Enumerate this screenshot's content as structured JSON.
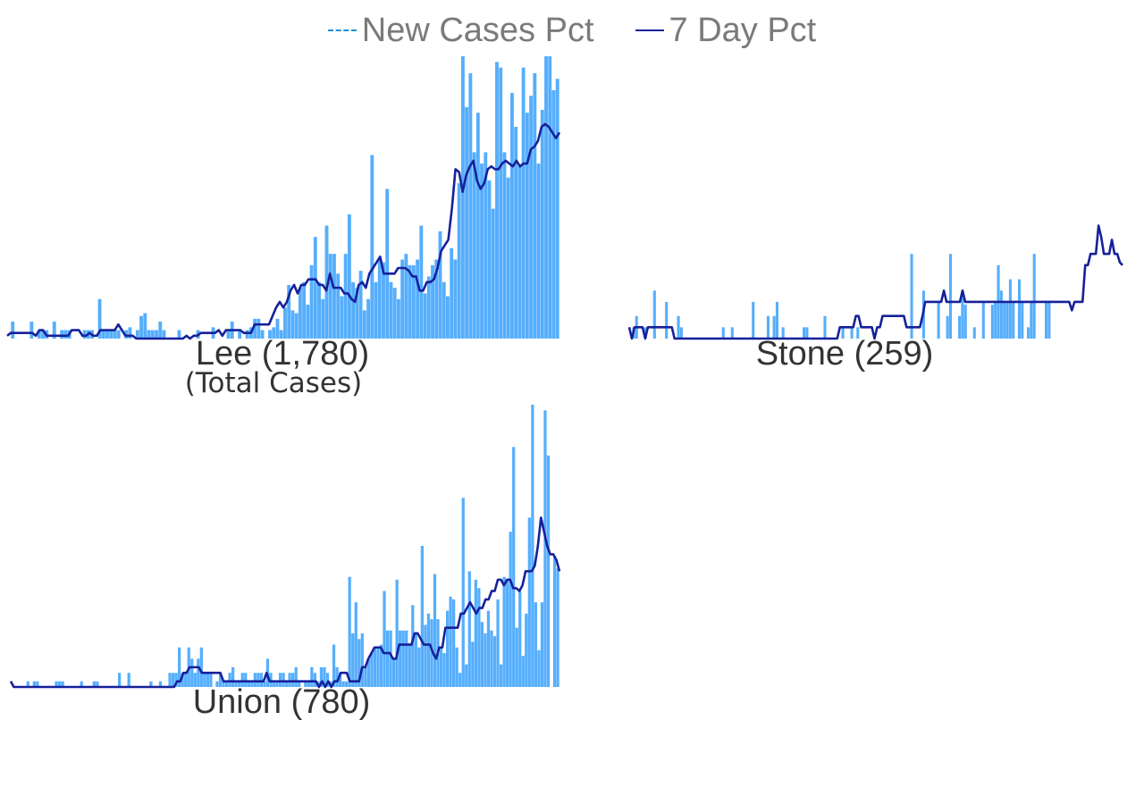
{
  "legend": {
    "new_cases_label": "New Cases Pct",
    "seven_day_label": "7 Day Pct"
  },
  "colors": {
    "bar": "#56aefc",
    "line": "#16219a",
    "legend_dashed": "#1f8fd6"
  },
  "chart_data": [
    {
      "type": "bar",
      "title": "Lee (1,780)",
      "subtitle": "(Total Cases)",
      "ylim": [
        0,
        100
      ],
      "bars": [
        0,
        6,
        0,
        0,
        0,
        0,
        6,
        0,
        3,
        3,
        3,
        0,
        6,
        0,
        3,
        3,
        3,
        0,
        0,
        0,
        3,
        3,
        3,
        0,
        14,
        3,
        3,
        3,
        3,
        3,
        0,
        3,
        4,
        0,
        3,
        8,
        9,
        3,
        3,
        3,
        6,
        3,
        0,
        0,
        0,
        3,
        0,
        0,
        0,
        0,
        3,
        0,
        0,
        0,
        4,
        0,
        0,
        0,
        3,
        6,
        0,
        3,
        0,
        3,
        4,
        7,
        7,
        3,
        0,
        3,
        4,
        7,
        3,
        11,
        19,
        10,
        9,
        18,
        20,
        12,
        26,
        36,
        20,
        14,
        40,
        30,
        30,
        23,
        15,
        30,
        44,
        20,
        18,
        24,
        10,
        14,
        65,
        20,
        28,
        27,
        53,
        20,
        18,
        14,
        28,
        30,
        26,
        26,
        28,
        40,
        16,
        22,
        26,
        28,
        38,
        20,
        15,
        32,
        28,
        55,
        100,
        82,
        94,
        66,
        80,
        62,
        66,
        56,
        46,
        98,
        96,
        66,
        57,
        87,
        75,
        61,
        96,
        80,
        86,
        94,
        62,
        81,
        100,
        100,
        88,
        92
      ],
      "line": [
        1,
        2,
        2,
        2,
        2,
        2,
        2,
        2,
        1,
        3,
        3,
        1,
        1,
        1,
        1,
        1,
        1,
        1,
        3,
        3,
        3,
        1,
        1,
        2,
        1,
        1,
        3,
        3,
        3,
        3,
        3,
        5,
        3,
        1,
        1,
        1,
        0,
        0,
        0,
        0,
        0,
        0,
        0,
        0,
        0,
        0,
        0,
        0,
        0,
        0,
        1,
        0,
        1,
        1,
        2,
        2,
        2,
        2,
        2,
        3,
        1,
        3,
        3,
        3,
        3,
        3,
        2,
        2,
        2,
        5,
        5,
        5,
        5,
        5,
        8,
        11,
        13,
        11,
        13,
        17,
        19,
        16,
        19,
        19,
        21,
        21,
        21,
        19,
        19,
        17,
        23,
        18,
        18,
        18,
        16,
        16,
        14,
        13,
        19,
        20,
        18,
        23,
        25,
        27,
        29,
        23,
        23,
        23,
        23,
        25,
        25,
        25,
        24,
        22,
        22,
        17,
        17,
        20,
        20,
        21,
        25,
        31,
        33,
        35,
        46,
        60,
        59,
        52,
        58,
        61,
        63,
        56,
        53,
        55,
        60,
        61,
        60,
        60,
        62,
        63,
        62,
        61,
        63,
        61,
        62,
        62,
        67,
        68,
        70,
        75,
        76,
        75,
        73,
        71,
        73
      ]
    },
    {
      "type": "bar",
      "title": "Stone (259)",
      "ylim": [
        0,
        100
      ],
      "bars": [
        0,
        4,
        8,
        0,
        0,
        4,
        0,
        0,
        17,
        0,
        0,
        0,
        13,
        0,
        0,
        0,
        8,
        4,
        0,
        0,
        0,
        0,
        0,
        0,
        0,
        0,
        0,
        0,
        0,
        0,
        0,
        4,
        0,
        0,
        4,
        0,
        0,
        0,
        0,
        0,
        0,
        13,
        0,
        0,
        0,
        0,
        8,
        0,
        8,
        13,
        0,
        4,
        0,
        0,
        0,
        0,
        0,
        0,
        4,
        4,
        0,
        0,
        0,
        0,
        0,
        8,
        0,
        0,
        0,
        0,
        0,
        4,
        0,
        0,
        4,
        0,
        4,
        0,
        0,
        0,
        0,
        0,
        0,
        0,
        0,
        0,
        0,
        0,
        0,
        0,
        0,
        0,
        0,
        0,
        30,
        0,
        0,
        0,
        17,
        0,
        0,
        0,
        0,
        13,
        0,
        0,
        8,
        30,
        0,
        0,
        8,
        17,
        12,
        0,
        0,
        4,
        0,
        0,
        13,
        0,
        0,
        12,
        13,
        26,
        17,
        13,
        13,
        21,
        13,
        0,
        21,
        13,
        0,
        4,
        13,
        30,
        0,
        0,
        0,
        13,
        13,
        0,
        0,
        0,
        0,
        0,
        0,
        0,
        0,
        0,
        0,
        0,
        0,
        0,
        0,
        0,
        0,
        0,
        0,
        0,
        0,
        0,
        0,
        0,
        0
      ],
      "line": [
        4,
        0,
        4,
        4,
        4,
        4,
        0,
        4,
        4,
        4,
        4,
        4,
        4,
        4,
        4,
        4,
        4,
        0,
        0,
        0,
        0,
        0,
        0,
        0,
        0,
        0,
        0,
        0,
        0,
        0,
        0,
        0,
        0,
        0,
        0,
        0,
        0,
        0,
        0,
        0,
        0,
        0,
        0,
        0,
        0,
        0,
        0,
        0,
        0,
        0,
        0,
        0,
        0,
        0,
        0,
        0,
        0,
        0,
        0,
        0,
        0,
        0,
        0,
        0,
        0,
        0,
        0,
        0,
        0,
        0,
        0,
        0,
        0,
        0,
        0,
        0,
        0,
        0,
        0,
        4,
        4,
        4,
        4,
        4,
        4,
        8,
        8,
        4,
        4,
        4,
        4,
        4,
        0,
        4,
        4,
        8,
        8,
        8,
        8,
        8,
        8,
        8,
        8,
        8,
        4,
        4,
        4,
        4,
        4,
        4,
        8,
        13,
        13,
        13,
        13,
        13,
        13,
        13,
        17,
        13,
        13,
        13,
        13,
        13,
        13,
        17,
        13,
        13,
        13,
        13,
        13,
        13,
        13,
        13,
        13,
        13,
        13,
        13,
        13,
        13,
        13,
        13,
        13,
        13,
        13,
        13,
        13,
        13,
        13,
        13,
        13,
        13,
        13,
        13,
        13,
        13,
        13,
        13,
        13,
        13,
        13,
        13,
        13,
        13,
        13
      ],
      "line_tail": [
        13,
        10,
        13,
        13,
        13,
        13,
        26,
        26,
        30,
        30,
        30,
        40,
        36,
        30,
        30,
        30,
        35,
        30,
        30,
        27,
        26
      ]
    },
    {
      "type": "bar",
      "title": "Union (780)",
      "ylim": [
        0,
        100
      ],
      "bars": [
        0,
        0,
        0,
        0,
        0,
        2,
        0,
        2,
        2,
        0,
        0,
        0,
        0,
        0,
        2,
        2,
        2,
        0,
        0,
        0,
        0,
        0,
        2,
        0,
        0,
        0,
        2,
        2,
        0,
        0,
        0,
        0,
        0,
        0,
        5,
        0,
        0,
        5,
        0,
        0,
        0,
        0,
        0,
        0,
        2,
        0,
        0,
        2,
        0,
        0,
        5,
        5,
        5,
        14,
        5,
        5,
        14,
        10,
        5,
        10,
        14,
        5,
        5,
        5,
        0,
        2,
        5,
        2,
        2,
        5,
        7,
        2,
        2,
        5,
        5,
        2,
        2,
        5,
        5,
        5,
        2,
        10,
        5,
        2,
        2,
        5,
        5,
        2,
        5,
        5,
        7,
        2,
        0,
        2,
        2,
        7,
        5,
        2,
        7,
        7,
        5,
        2,
        15,
        7,
        5,
        2,
        2,
        39,
        19,
        30,
        17,
        19,
        7,
        10,
        12,
        14,
        14,
        15,
        34,
        20,
        20,
        10,
        38,
        20,
        20,
        20,
        15,
        29,
        19,
        14,
        50,
        22,
        26,
        24,
        40,
        24,
        14,
        12,
        27,
        32,
        31,
        14,
        5,
        67,
        8,
        41,
        16,
        38,
        35,
        23,
        19,
        27,
        20,
        18,
        31,
        8,
        39,
        38,
        55,
        85,
        21,
        34,
        11,
        26,
        60,
        100,
        30,
        13,
        30,
        98,
        82,
        0,
        46,
        42
      ],
      "line": [
        2,
        0,
        0,
        0,
        0,
        0,
        0,
        0,
        0,
        0,
        0,
        0,
        0,
        0,
        0,
        0,
        0,
        0,
        0,
        0,
        0,
        0,
        0,
        0,
        0,
        0,
        0,
        0,
        0,
        0,
        0,
        0,
        0,
        0,
        0,
        0,
        0,
        0,
        0,
        0,
        0,
        0,
        0,
        0,
        0,
        0,
        0,
        0,
        0,
        0,
        0,
        0,
        0,
        0,
        2,
        2,
        5,
        5,
        7,
        7,
        7,
        7,
        5,
        5,
        5,
        5,
        5,
        5,
        5,
        2,
        2,
        2,
        2,
        2,
        2,
        2,
        2,
        2,
        2,
        2,
        2,
        2,
        2,
        5,
        2,
        2,
        2,
        2,
        2,
        2,
        2,
        2,
        2,
        2,
        2,
        2,
        2,
        2,
        2,
        2,
        0,
        2,
        0,
        2,
        0,
        2,
        2,
        5,
        5,
        5,
        2,
        2,
        2,
        2,
        7,
        7,
        10,
        12,
        14,
        14,
        14,
        12,
        12,
        12,
        10,
        10,
        15,
        15,
        15,
        15,
        15,
        19,
        19,
        17,
        15,
        15,
        15,
        12,
        10,
        14,
        14,
        21,
        21,
        21,
        21,
        21,
        26,
        26,
        28,
        30,
        28,
        26,
        28,
        28,
        31,
        31,
        34,
        34,
        38,
        38,
        36,
        38,
        38,
        35,
        35,
        34,
        36,
        41,
        41,
        41,
        43,
        50,
        60,
        55,
        50,
        47,
        47,
        45,
        41
      ]
    }
  ]
}
